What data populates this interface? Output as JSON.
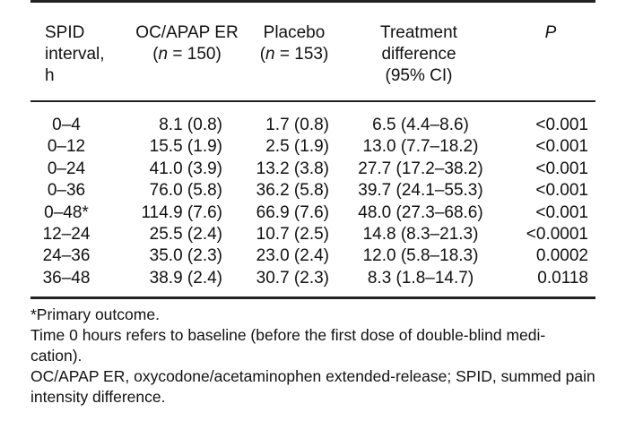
{
  "table": {
    "headers": [
      "SPID\ninterval,\nh",
      "OC/APAP ER\n(n = 150)",
      "Placebo\n(n = 153)",
      "Treatment\ndifference\n(95% CI)",
      "P"
    ],
    "rows": [
      [
        "0–4",
        "8.1 (0.8)",
        "1.7 (0.8)",
        "6.5 (4.4–8.6)",
        "<0.001"
      ],
      [
        "0–12",
        "15.5 (1.9)",
        "2.5 (1.9)",
        "13.0 (7.7–18.2)",
        "<0.001"
      ],
      [
        "0–24",
        "41.0 (3.9)",
        "13.2 (3.8)",
        "27.7 (17.2–38.2)",
        "<0.001"
      ],
      [
        "0–36",
        "76.0 (5.8)",
        "36.2 (5.8)",
        "39.7 (24.1–55.3)",
        "<0.001"
      ],
      [
        "0–48*",
        "114.9 (7.6)",
        "66.9 (7.6)",
        "48.0 (27.3–68.6)",
        "<0.001"
      ],
      [
        "12–24",
        "25.5 (2.4)",
        "10.7 (2.5)",
        "14.8 (8.3–21.3)",
        "<0.0001"
      ],
      [
        "24–36",
        "35.0 (2.3)",
        "23.0 (2.4)",
        "12.0 (5.8–18.3)",
        "0.0002"
      ],
      [
        "36–48",
        "38.9 (2.4)",
        "30.7 (2.3)",
        "8.3 (1.8–14.7)",
        "0.0118"
      ]
    ]
  },
  "notes": [
    "*Primary outcome.",
    "Time 0 hours refers to baseline (before the first dose of double-blind medi-cation).",
    "OC/APAP ER, oxycodone/acetaminophen extended-release; SPID, summed pain intensity difference."
  ]
}
